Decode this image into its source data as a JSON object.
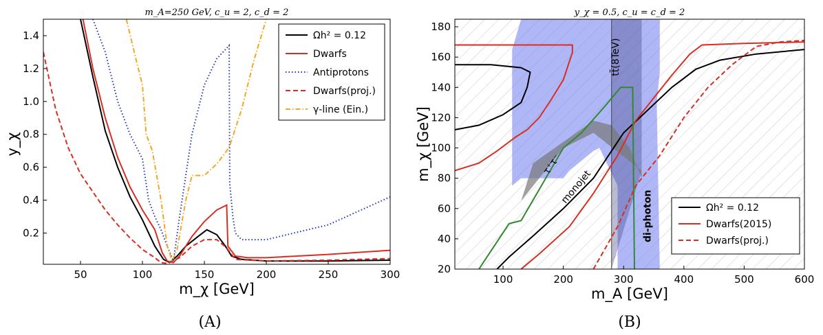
{
  "chart_data": [
    {
      "type": "line",
      "panel_caption": "(A)",
      "title": "m_A=250 GeV, c_u = 2, c_d = 2",
      "xlabel": "m_χ [GeV]",
      "ylabel": "y_χ",
      "xlim": [
        20,
        300
      ],
      "ylim": [
        0.01,
        1.5
      ],
      "xticks": [
        "50",
        "100",
        "150",
        "200",
        "250",
        "300"
      ],
      "yticks": [
        "0.2",
        "0.4",
        "0.6",
        "0.8",
        "1.0",
        "1.2",
        "1.4"
      ],
      "legend_position": "top-right",
      "colors": {
        "relic": "#000000",
        "dwarfs": "#d62e22",
        "antiprotons": "#2233bb",
        "dwarfs_proj": "#d62e22",
        "gamma": "#f5a623"
      },
      "series": [
        {
          "name": "Ωh² = 0.12",
          "style": "solid",
          "color_key": "relic",
          "points": [
            [
              50,
              1.5
            ],
            [
              60,
              1.15
            ],
            [
              70,
              0.82
            ],
            [
              80,
              0.6
            ],
            [
              90,
              0.42
            ],
            [
              100,
              0.28
            ],
            [
              110,
              0.12
            ],
            [
              117,
              0.04
            ],
            [
              122,
              0.02
            ],
            [
              128,
              0.06
            ],
            [
              135,
              0.12
            ],
            [
              145,
              0.18
            ],
            [
              152,
              0.22
            ],
            [
              160,
              0.19
            ],
            [
              167,
              0.12
            ],
            [
              172,
              0.06
            ],
            [
              180,
              0.04
            ],
            [
              200,
              0.03
            ],
            [
              250,
              0.03
            ],
            [
              300,
              0.035
            ]
          ]
        },
        {
          "name": "Dwarfs",
          "style": "solid",
          "color_key": "dwarfs",
          "points": [
            [
              52,
              1.5
            ],
            [
              60,
              1.2
            ],
            [
              70,
              0.9
            ],
            [
              80,
              0.66
            ],
            [
              90,
              0.48
            ],
            [
              100,
              0.34
            ],
            [
              110,
              0.22
            ],
            [
              116,
              0.08
            ],
            [
              120,
              0.03
            ],
            [
              125,
              0.02
            ],
            [
              130,
              0.06
            ],
            [
              140,
              0.18
            ],
            [
              150,
              0.27
            ],
            [
              160,
              0.34
            ],
            [
              168,
              0.37
            ],
            [
              169,
              0.12
            ],
            [
              175,
              0.06
            ],
            [
              185,
              0.05
            ],
            [
              200,
              0.05
            ],
            [
              250,
              0.07
            ],
            [
              300,
              0.095
            ]
          ]
        },
        {
          "name": "Antiprotons",
          "style": "dotted",
          "color_key": "antiprotons",
          "points": [
            [
              60,
              1.5
            ],
            [
              70,
              1.3
            ],
            [
              80,
              1.0
            ],
            [
              90,
              0.8
            ],
            [
              100,
              0.65
            ],
            [
              105,
              0.4
            ],
            [
              110,
              0.3
            ],
            [
              115,
              0.22
            ],
            [
              120,
              0.12
            ],
            [
              125,
              0.03
            ],
            [
              130,
              0.3
            ],
            [
              140,
              0.8
            ],
            [
              150,
              1.1
            ],
            [
              160,
              1.26
            ],
            [
              170,
              1.34
            ],
            [
              170.5,
              0.5
            ],
            [
              173,
              0.3
            ],
            [
              175,
              0.2
            ],
            [
              180,
              0.16
            ],
            [
              200,
              0.16
            ],
            [
              250,
              0.25
            ],
            [
              300,
              0.42
            ]
          ]
        },
        {
          "name": "Dwarfs(proj.)",
          "style": "dashed",
          "color_key": "dwarfs_proj",
          "points": [
            [
              20,
              1.3
            ],
            [
              30,
              0.95
            ],
            [
              40,
              0.72
            ],
            [
              50,
              0.56
            ],
            [
              60,
              0.45
            ],
            [
              70,
              0.34
            ],
            [
              80,
              0.25
            ],
            [
              90,
              0.17
            ],
            [
              100,
              0.1
            ],
            [
              110,
              0.05
            ],
            [
              115,
              0.02
            ],
            [
              120,
              0.015
            ],
            [
              130,
              0.05
            ],
            [
              140,
              0.12
            ],
            [
              150,
              0.16
            ],
            [
              160,
              0.16
            ],
            [
              168,
              0.11
            ],
            [
              175,
              0.04
            ],
            [
              200,
              0.03
            ],
            [
              250,
              0.035
            ],
            [
              300,
              0.045
            ]
          ]
        },
        {
          "name": "γ-line (Ein.)",
          "style": "dashdot",
          "color_key": "gamma",
          "points": [
            [
              87,
              1.5
            ],
            [
              95,
              1.25
            ],
            [
              100,
              1.1
            ],
            [
              103,
              0.8
            ],
            [
              108,
              0.7
            ],
            [
              115,
              0.4
            ],
            [
              120,
              0.12
            ],
            [
              124,
              0.03
            ],
            [
              128,
              0.1
            ],
            [
              135,
              0.4
            ],
            [
              140,
              0.55
            ],
            [
              150,
              0.55
            ],
            [
              160,
              0.62
            ],
            [
              170,
              0.72
            ],
            [
              180,
              0.95
            ],
            [
              190,
              1.25
            ],
            [
              200,
              1.5
            ]
          ]
        }
      ]
    },
    {
      "type": "line",
      "panel_caption": "(B)",
      "title": "y_χ = 0.5, c_u = c_d = 2",
      "xlabel": "m_A [GeV]",
      "ylabel": "m_χ [GeV]",
      "xlim": [
        20,
        600
      ],
      "ylim": [
        20,
        185
      ],
      "xticks": [
        "100",
        "200",
        "300",
        "400",
        "500",
        "600"
      ],
      "yticks": [
        "20",
        "40",
        "60",
        "80",
        "100",
        "120",
        "140",
        "160",
        "180"
      ],
      "legend_position": "bottom-right",
      "colors": {
        "relic": "#000000",
        "dwarfs": "#d62e22",
        "dwarfs_proj": "#d62e22",
        "monojet": "#2f8a2f",
        "diphoton": "#6f7cf0",
        "ttbar": "#555577",
        "tautau": "#707070",
        "hatch": "#bbbbbb"
      },
      "annotations": {
        "ttbar": "tt̄(8TeV)",
        "tautau": "τ⁺τ⁻",
        "monojet": "monojet",
        "diphoton": "di-photon"
      },
      "regions": [
        {
          "name": "di-photon",
          "color_key": "diphoton",
          "points": [
            [
              115,
              75
            ],
            [
              115,
              165
            ],
            [
              130,
              185
            ],
            [
              360,
              185
            ],
            [
              360,
              150
            ],
            [
              355,
              130
            ],
            [
              360,
              20
            ],
            [
              290,
              20
            ],
            [
              290,
              75
            ],
            [
              260,
              100
            ],
            [
              250,
              98
            ],
            [
              210,
              85
            ],
            [
              200,
              80
            ],
            [
              130,
              80
            ]
          ]
        },
        {
          "name": "tt̄(8TeV)",
          "color_key": "ttbar",
          "points": [
            [
              130,
              185
            ],
            [
              330,
              185
            ],
            [
              330,
              85
            ],
            [
              280,
              20
            ],
            [
              280,
              185
            ]
          ]
        },
        {
          "name": "τ⁺τ⁻",
          "color_key": "tautau",
          "points": [
            [
              130,
              65
            ],
            [
              200,
              100
            ],
            [
              250,
              110
            ],
            [
              330,
              85
            ],
            [
              330,
              80
            ],
            [
              310,
              100
            ],
            [
              280,
              115
            ],
            [
              250,
              118
            ],
            [
              150,
              90
            ]
          ]
        }
      ],
      "series": [
        {
          "name": "Ωh² = 0.12",
          "style": "solid",
          "color_key": "relic",
          "points": [
            [
              20,
              112
            ],
            [
              60,
              115
            ],
            [
              100,
              122
            ],
            [
              130,
              130
            ],
            [
              140,
              140
            ],
            [
              145,
              150
            ],
            [
              130,
              153
            ],
            [
              80,
              155
            ],
            [
              20,
              155
            ]
          ]
        },
        {
          "name": "Ωh² = 0.12",
          "style": "solid",
          "color_key": "relic",
          "points": [
            [
              90,
              20
            ],
            [
              110,
              28
            ],
            [
              150,
              42
            ],
            [
              200,
              60
            ],
            [
              250,
              80
            ],
            [
              280,
              98
            ],
            [
              300,
              110
            ],
            [
              340,
              125
            ],
            [
              380,
              140
            ],
            [
              420,
              152
            ],
            [
              460,
              158
            ],
            [
              520,
              162
            ],
            [
              600,
              165
            ]
          ]
        },
        {
          "name": "Dwarfs(2015)",
          "style": "solid",
          "color_key": "dwarfs",
          "points": [
            [
              20,
              168
            ],
            [
              215,
              168
            ],
            [
              215,
              163
            ],
            [
              200,
              145
            ],
            [
              180,
              132
            ],
            [
              160,
              120
            ],
            [
              140,
              112
            ],
            [
              120,
              107
            ],
            [
              90,
              98
            ],
            [
              60,
              90
            ],
            [
              20,
              85
            ]
          ]
        },
        {
          "name": "Dwarfs(2015)",
          "style": "solid",
          "color_key": "dwarfs",
          "points": [
            [
              130,
              20
            ],
            [
              160,
              30
            ],
            [
              210,
              48
            ],
            [
              250,
              70
            ],
            [
              290,
              95
            ],
            [
              320,
              118
            ],
            [
              350,
              133
            ],
            [
              380,
              148
            ],
            [
              410,
              162
            ],
            [
              430,
              168
            ],
            [
              500,
              169
            ],
            [
              600,
              170
            ]
          ]
        },
        {
          "name": "Dwarfs(proj.)",
          "style": "dashed",
          "color_key": "dwarfs_proj",
          "points": [
            [
              250,
              20
            ],
            [
              290,
              48
            ],
            [
              320,
              75
            ],
            [
              360,
              95
            ],
            [
              400,
              120
            ],
            [
              440,
              140
            ],
            [
              480,
              155
            ],
            [
              520,
              167
            ],
            [
              560,
              170
            ],
            [
              600,
              171
            ]
          ]
        },
        {
          "name": "monojet",
          "style": "solid",
          "color_key": "monojet",
          "points": [
            [
              60,
              20
            ],
            [
              110,
              50
            ],
            [
              130,
              52
            ],
            [
              200,
              100
            ],
            [
              230,
              110
            ],
            [
              270,
              128
            ],
            [
              295,
              140
            ],
            [
              315,
              140
            ],
            [
              318,
              20
            ]
          ]
        }
      ]
    }
  ]
}
